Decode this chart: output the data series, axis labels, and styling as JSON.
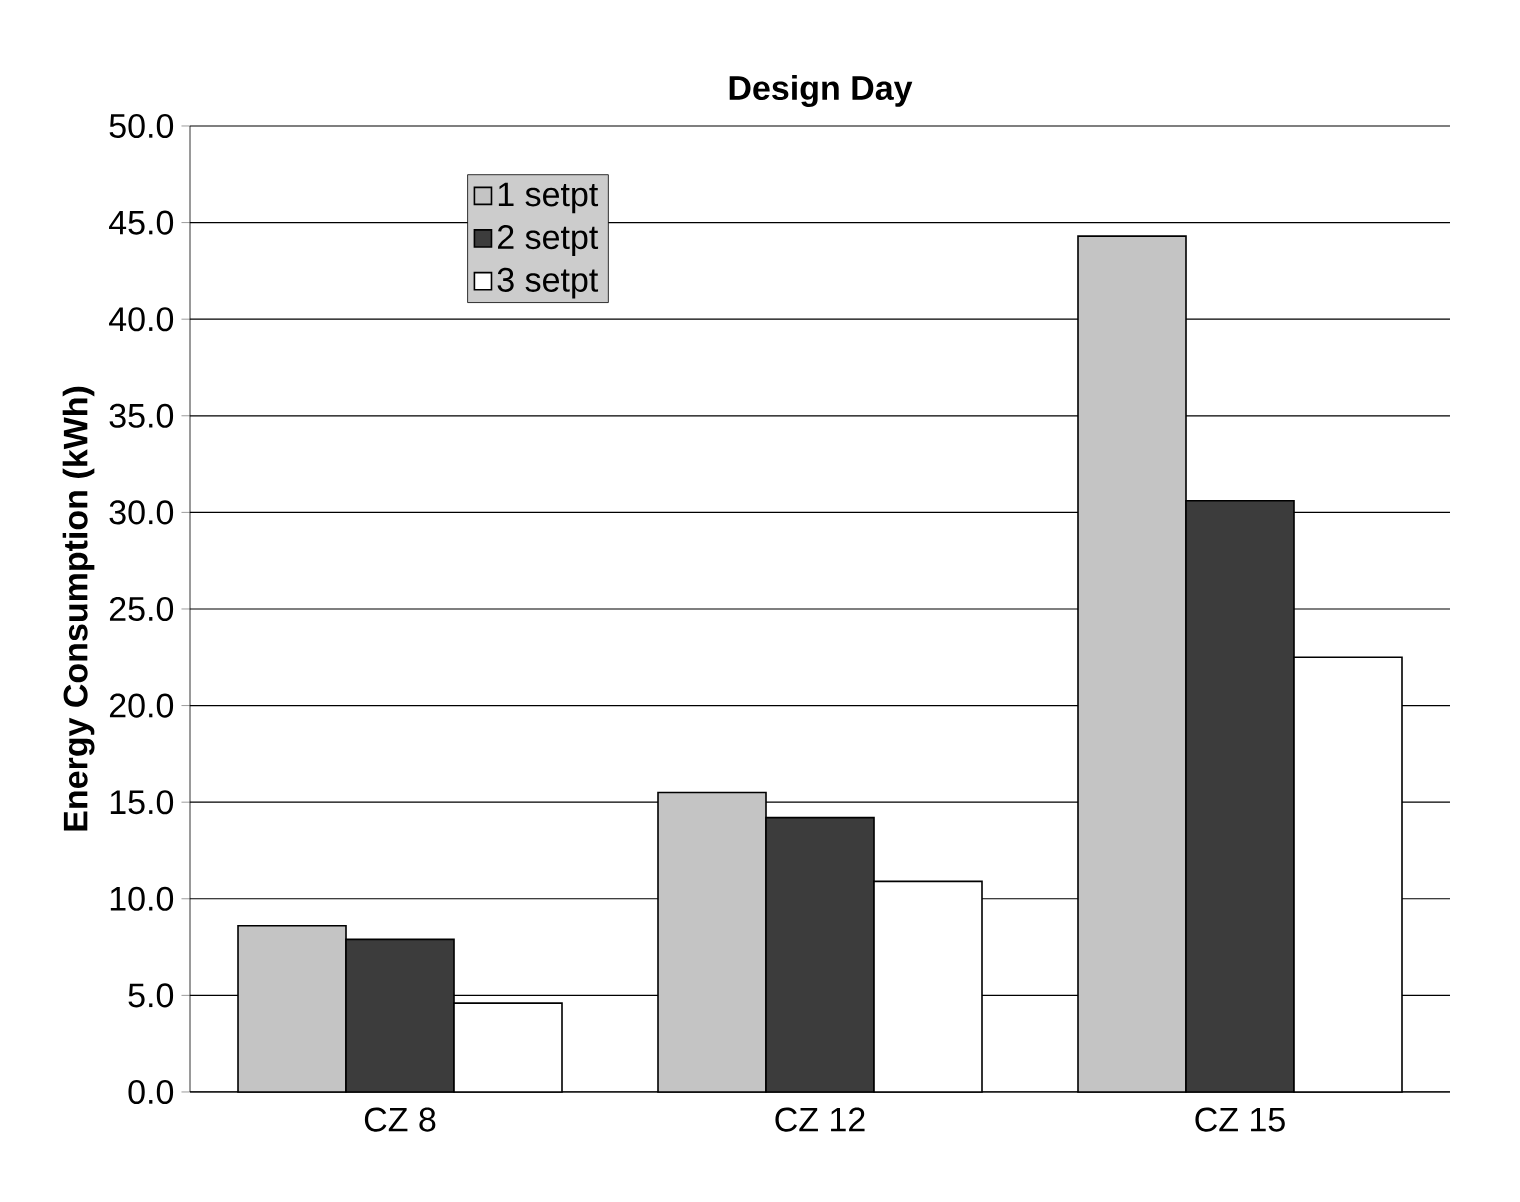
{
  "chart_data": {
    "type": "bar",
    "title": "Design Day",
    "ylabel": "Energy Consumption (kWh)",
    "categories": [
      "CZ 8",
      "CZ 12",
      "CZ 15"
    ],
    "series": [
      {
        "name": "1 setpt",
        "color": "#c4c4c4",
        "values": [
          8.6,
          15.5,
          44.3
        ]
      },
      {
        "name": "2 setpt",
        "color": "#3c3c3c",
        "values": [
          7.9,
          14.2,
          30.6
        ]
      },
      {
        "name": "3 setpt",
        "color": "#ffffff",
        "values": [
          4.6,
          10.9,
          22.5
        ]
      }
    ],
    "ylim": [
      0,
      50
    ],
    "yticks": [
      {
        "value": 0,
        "label": "0.0"
      },
      {
        "value": 5,
        "label": "5.0"
      },
      {
        "value": 10,
        "label": "10.0"
      },
      {
        "value": 15,
        "label": "15.0"
      },
      {
        "value": 20,
        "label": "20.0"
      },
      {
        "value": 25,
        "label": "25.0"
      },
      {
        "value": 30,
        "label": "30.0"
      },
      {
        "value": 35,
        "label": "35.0"
      },
      {
        "value": 40,
        "label": "40.0"
      },
      {
        "value": 45,
        "label": "45.0"
      },
      {
        "value": 50,
        "label": "50.0"
      }
    ],
    "grid": "y",
    "legend": "top left"
  }
}
